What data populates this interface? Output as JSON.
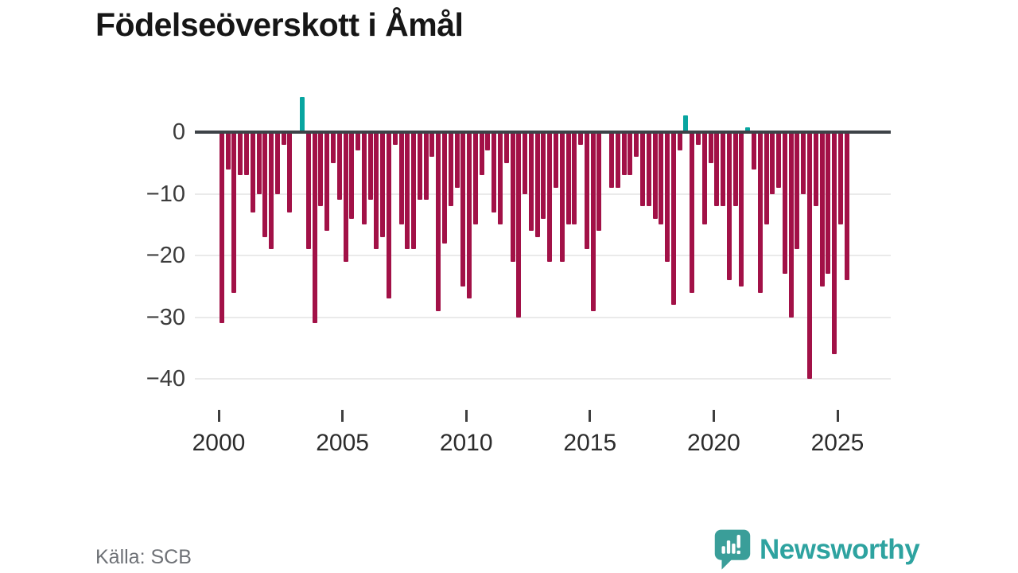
{
  "title": "Födelseöverskott i Åmål",
  "source_label": "Källa: SCB",
  "logo": {
    "wordmark": "Newsworthy",
    "icon": "newsworthy-speech-bubble-bar-chart-icon"
  },
  "colors": {
    "negative_bar": "#a21147",
    "positive_bar": "#08a5a0",
    "axis_line": "#3d4247",
    "gridline": "#eaeaea",
    "tick_label": "#3c3c3c",
    "title_text": "#161616",
    "source_text": "#6e7176",
    "logo_teal": "#2ea3a0",
    "logo_bubble": "#3a9e99"
  },
  "chart_data": {
    "type": "bar",
    "title": "Födelseöverskott i Åmål",
    "xlabel": "",
    "ylabel": "",
    "frequency": "quarterly",
    "period_start": "2000 Q1",
    "period_end": "2025 Q2",
    "grid": "horizontal",
    "legend": "none",
    "ylim": [
      -42,
      8
    ],
    "y_ticks": [
      {
        "value": 0,
        "label": "0"
      },
      {
        "value": -10,
        "label": "−10"
      },
      {
        "value": -20,
        "label": "−20"
      },
      {
        "value": -30,
        "label": "−30"
      },
      {
        "value": -40,
        "label": "−40"
      }
    ],
    "x_ticks": [
      {
        "year": 2000,
        "label": "2000"
      },
      {
        "year": 2005,
        "label": "2005"
      },
      {
        "year": 2010,
        "label": "2010"
      },
      {
        "year": 2015,
        "label": "2015"
      },
      {
        "year": 2020,
        "label": "2020"
      },
      {
        "year": 2025,
        "label": "2025"
      }
    ],
    "values_by_year": [
      {
        "year": 2000,
        "values": [
          -31,
          -6,
          -26,
          -7
        ]
      },
      {
        "year": 2001,
        "values": [
          -7,
          -13,
          -10,
          -17
        ]
      },
      {
        "year": 2002,
        "values": [
          -19,
          -10,
          -2,
          -13
        ]
      },
      {
        "year": 2003,
        "values": [
          0,
          6,
          -19,
          -31
        ]
      },
      {
        "year": 2004,
        "values": [
          -12,
          -16,
          -5,
          -11
        ]
      },
      {
        "year": 2005,
        "values": [
          -21,
          -14,
          -3,
          -15
        ]
      },
      {
        "year": 2006,
        "values": [
          -11,
          -19,
          -17,
          -27
        ]
      },
      {
        "year": 2007,
        "values": [
          -2,
          -15,
          -19,
          -19
        ]
      },
      {
        "year": 2008,
        "values": [
          -11,
          -11,
          -4,
          -29
        ]
      },
      {
        "year": 2009,
        "values": [
          -18,
          -12,
          -9,
          -25
        ]
      },
      {
        "year": 2010,
        "values": [
          -27,
          -15,
          -7,
          -3
        ]
      },
      {
        "year": 2011,
        "values": [
          -13,
          -15,
          -5,
          -21
        ]
      },
      {
        "year": 2012,
        "values": [
          -30,
          -10,
          -16,
          -17
        ]
      },
      {
        "year": 2013,
        "values": [
          -14,
          -21,
          -9,
          -21
        ]
      },
      {
        "year": 2014,
        "values": [
          -15,
          -15,
          -2,
          -19
        ]
      },
      {
        "year": 2015,
        "values": [
          -29,
          -16,
          0,
          -9
        ]
      },
      {
        "year": 2016,
        "values": [
          -9,
          -7,
          -7,
          -4
        ]
      },
      {
        "year": 2017,
        "values": [
          -12,
          -12,
          -14,
          -15
        ]
      },
      {
        "year": 2018,
        "values": [
          -21,
          -28,
          -3,
          3
        ]
      },
      {
        "year": 2019,
        "values": [
          -26,
          -2,
          -15,
          -5
        ]
      },
      {
        "year": 2020,
        "values": [
          -12,
          -12,
          -24,
          -12
        ]
      },
      {
        "year": 2021,
        "values": [
          -25,
          1,
          -6,
          -26
        ]
      },
      {
        "year": 2022,
        "values": [
          -15,
          -10,
          -9,
          -23
        ]
      },
      {
        "year": 2023,
        "values": [
          -30,
          -19,
          -10,
          -40
        ]
      },
      {
        "year": 2024,
        "values": [
          -12,
          -25,
          -23,
          -36
        ]
      },
      {
        "year": 2025,
        "values": [
          -15,
          -24
        ]
      }
    ]
  }
}
